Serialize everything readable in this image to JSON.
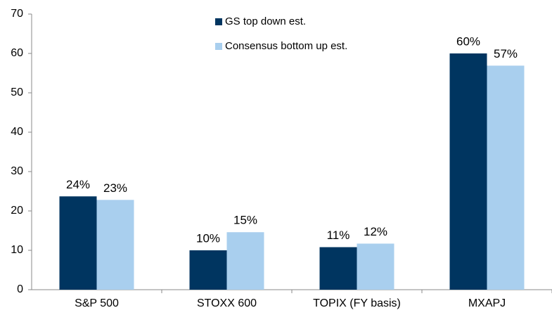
{
  "chart_data": {
    "type": "bar",
    "categories": [
      "S&P 500",
      "STOXX 600",
      "TOPIX (FY basis)",
      "MXAPJ"
    ],
    "series": [
      {
        "name": "GS top down est.",
        "color": "#003560",
        "values": [
          23.7,
          10,
          10.8,
          60
        ],
        "value_labels": [
          "24%",
          "10%",
          "11%",
          "60%"
        ]
      },
      {
        "name": "Consensus bottom up est.",
        "color": "#a9cfee",
        "values": [
          22.8,
          14.6,
          11.7,
          56.9
        ],
        "value_labels": [
          "23%",
          "15%",
          "12%",
          "57%"
        ]
      }
    ],
    "ylim": [
      0,
      70
    ],
    "yticks": [
      0,
      10,
      20,
      30,
      40,
      50,
      60,
      70
    ],
    "grid": false
  }
}
